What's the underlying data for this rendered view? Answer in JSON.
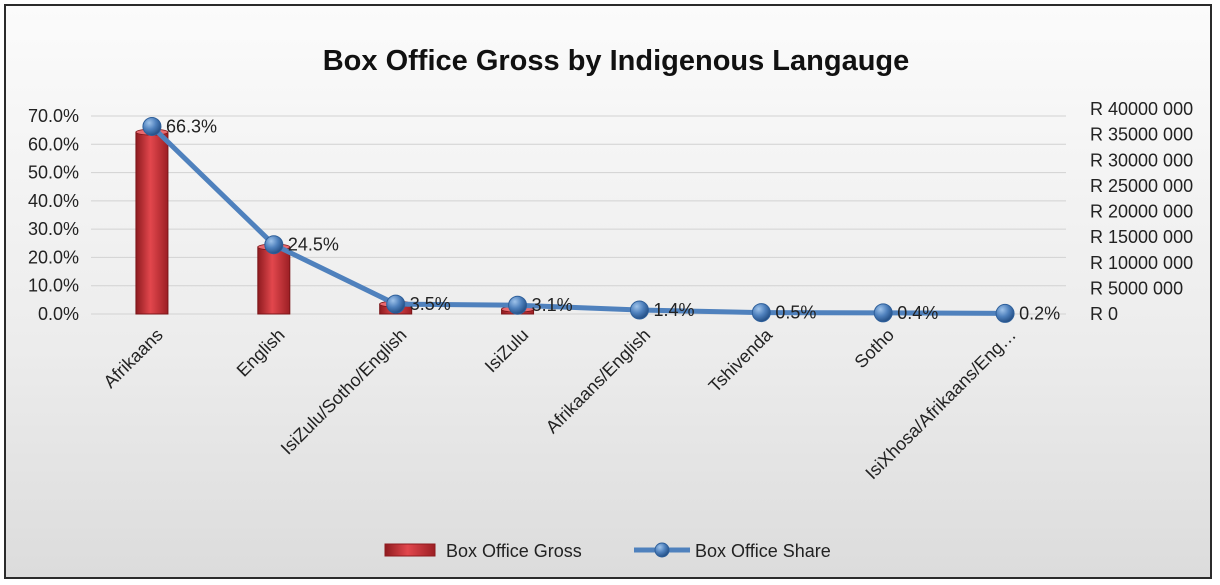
{
  "chart_data": {
    "type": "bar",
    "title": "Box Office Gross by Indigenous Langauge",
    "categories": [
      "Afrikaans",
      "English",
      "IsiZulu/Sotho/English",
      "IsiZulu",
      "Afrikaans/English",
      "Tshivenda",
      "Sotho",
      "IsiXhosa/Afrikaans/Eng…"
    ],
    "series": [
      {
        "name": "Box Office Gross",
        "kind": "bar",
        "axis": "left",
        "values": [
          0.643,
          0.237,
          0.035,
          0.017,
          0.0,
          0.0,
          0.0,
          0.0
        ],
        "color": "#c0272d"
      },
      {
        "name": "Box Office Share",
        "kind": "line",
        "axis": "left",
        "values": [
          0.663,
          0.245,
          0.035,
          0.031,
          0.014,
          0.005,
          0.004,
          0.002
        ],
        "labels": [
          "66.3%",
          "24.5%",
          "3.5%",
          "3.1%",
          "1.4%",
          "0.5%",
          "0.4%",
          "0.2%"
        ],
        "color": "#4f81bd"
      }
    ],
    "y_left": {
      "ylim": [
        0,
        0.7
      ],
      "ticks": [
        "0.0%",
        "10.0%",
        "20.0%",
        "30.0%",
        "40.0%",
        "50.0%",
        "60.0%",
        "70.0%"
      ]
    },
    "y_right": {
      "ylim": [
        0,
        40000000
      ],
      "ticks": [
        "R 0",
        "R 5000 000",
        "R 10000 000",
        "R 15000 000",
        "R 20000 000",
        "R 25000 000",
        "R 30000 000",
        "R 35000 000",
        "R 40000 000"
      ]
    },
    "grid": true,
    "legend": "bottom"
  }
}
